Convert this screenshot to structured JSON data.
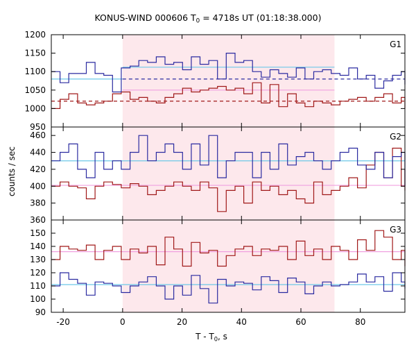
{
  "chart_data": {
    "type": "line",
    "title": {
      "prefix": "KONUS-WIND 000606 T",
      "sub": "0",
      "suffix": " = 4718s UT (01:18:38.000)"
    },
    "xlabel": {
      "prefix": "T - T",
      "sub": "0",
      "suffix": ", s"
    },
    "ylabel": "counts / sec",
    "xlim": [
      -24,
      95
    ],
    "xticks": [
      -20,
      0,
      20,
      40,
      60,
      80
    ],
    "bin_width": 2.944,
    "bins_start": -24,
    "highlight_interval": [
      0,
      71.3
    ],
    "colors": {
      "blue": "#2a2aa0",
      "red": "#a01818",
      "cyan": "#6cc8e8",
      "pink": "#f0a0e0",
      "highlight": "#fde8ec"
    },
    "panels": [
      {
        "name": "G1",
        "ylim": [
          950,
          1200
        ],
        "yticks": [
          950,
          1000,
          1050,
          1100,
          1150,
          1200
        ],
        "blue": [
          1100,
          1070,
          1095,
          1095,
          1125,
          1095,
          1090,
          1045,
          1110,
          1115,
          1130,
          1125,
          1140,
          1120,
          1125,
          1105,
          1140,
          1120,
          1130,
          1080,
          1150,
          1125,
          1130,
          1100,
          1085,
          1105,
          1095,
          1085,
          1110,
          1080,
          1100,
          1105,
          1095,
          1090,
          1110,
          1080,
          1090,
          1055,
          1075,
          1090,
          1100,
          1065,
          1080
        ],
        "red": [
          1000,
          1025,
          1040,
          1015,
          1010,
          1015,
          1020,
          1040,
          1045,
          1025,
          1030,
          1020,
          1015,
          1030,
          1040,
          1055,
          1045,
          1050,
          1055,
          1060,
          1050,
          1055,
          1040,
          1070,
          1015,
          1065,
          1005,
          1040,
          1015,
          1005,
          1020,
          1015,
          1010,
          1020,
          1025,
          1030,
          1020,
          1030,
          1040,
          1015,
          1030,
          1000,
          1020
        ],
        "levels": [
          {
            "color": "cyan",
            "from": -24,
            "to": 0,
            "y": 1080,
            "dash": false
          },
          {
            "color": "cyan",
            "from": 0,
            "to": 71.3,
            "y": 1112,
            "dash": false
          },
          {
            "color": "blue",
            "from": 0,
            "to": 71.3,
            "y": 1080,
            "dash": true
          },
          {
            "color": "blue",
            "from": 71.3,
            "to": 95,
            "y": 1080,
            "dash": true
          },
          {
            "color": "pink",
            "from": 0,
            "to": 71.3,
            "y": 1050,
            "dash": false
          },
          {
            "color": "red",
            "from": -24,
            "to": 95,
            "y": 1020,
            "dash": true
          }
        ]
      },
      {
        "name": "G2",
        "ylim": [
          360,
          470
        ],
        "yticks": [
          360,
          380,
          400,
          420,
          440,
          460
        ],
        "blue": [
          430,
          440,
          450,
          420,
          410,
          440,
          420,
          430,
          420,
          440,
          460,
          430,
          440,
          450,
          440,
          420,
          450,
          425,
          460,
          410,
          430,
          440,
          440,
          410,
          440,
          420,
          450,
          425,
          435,
          440,
          430,
          420,
          430,
          440,
          445,
          425,
          420,
          440,
          410,
          435,
          440,
          420,
          400
        ],
        "red": [
          400,
          405,
          400,
          398,
          385,
          400,
          405,
          402,
          398,
          403,
          400,
          390,
          395,
          400,
          405,
          400,
          395,
          405,
          398,
          370,
          395,
          400,
          380,
          405,
          395,
          400,
          390,
          395,
          385,
          380,
          405,
          390,
          395,
          400,
          410,
          398,
          425,
          440,
          410,
          445,
          400,
          420,
          395
        ],
        "levels": [
          {
            "color": "cyan",
            "from": -24,
            "to": 95,
            "y": 430,
            "dash": false
          },
          {
            "color": "pink",
            "from": -24,
            "to": 95,
            "y": 401,
            "dash": false
          }
        ]
      },
      {
        "name": "G3",
        "ylim": [
          90,
          160
        ],
        "yticks": [
          90,
          100,
          110,
          120,
          130,
          140,
          150
        ],
        "blue": [
          110,
          120,
          115,
          112,
          103,
          113,
          112,
          110,
          105,
          110,
          113,
          117,
          110,
          100,
          110,
          103,
          118,
          108,
          97,
          115,
          110,
          113,
          112,
          107,
          117,
          114,
          105,
          116,
          113,
          104,
          110,
          113,
          110,
          111,
          113,
          119,
          113,
          117,
          106,
          120,
          113,
          108,
          113
        ],
        "red": [
          130,
          140,
          138,
          137,
          141,
          130,
          137,
          140,
          130,
          138,
          135,
          140,
          126,
          147,
          138,
          125,
          143,
          135,
          137,
          125,
          133,
          138,
          140,
          133,
          138,
          137,
          140,
          130,
          144,
          133,
          138,
          130,
          140,
          137,
          130,
          145,
          137,
          152,
          147,
          130,
          137,
          125,
          132
        ],
        "levels": [
          {
            "color": "cyan",
            "from": -24,
            "to": 95,
            "y": 111,
            "dash": false
          },
          {
            "color": "pink",
            "from": -24,
            "to": 95,
            "y": 136,
            "dash": false
          }
        ]
      }
    ]
  }
}
